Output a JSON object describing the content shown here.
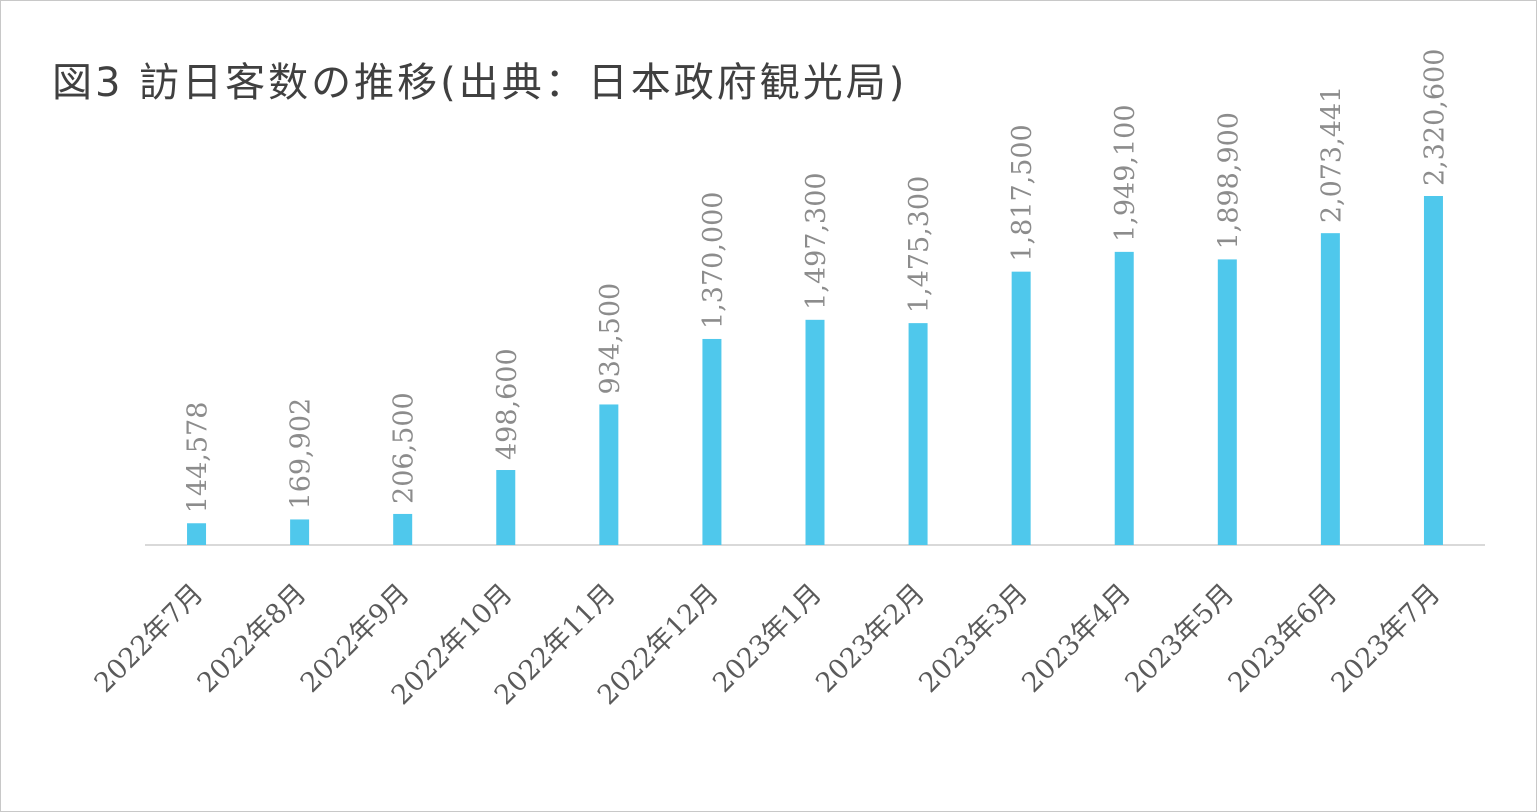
{
  "chart_data": {
    "type": "bar",
    "title": "図3 訪日客数の推移(出典：日本政府観光局)",
    "xlabel": "",
    "ylabel": "",
    "categories": [
      "2022年7月",
      "2022年8月",
      "2022年9月",
      "2022年10月",
      "2022年11月",
      "2022年12月",
      "2023年1月",
      "2023年2月",
      "2023年3月",
      "2023年4月",
      "2023年5月",
      "2023年6月",
      "2023年7月"
    ],
    "series": [
      {
        "values": [
          144578,
          169902,
          206500,
          498600,
          934500,
          1370000,
          1497300,
          1475300,
          1817500,
          1949100,
          1898900,
          2073441,
          2320600
        ]
      }
    ],
    "value_labels": [
      "144,578",
      "169,902",
      "206,500",
      "498,600",
      "934,500",
      "1,370,000",
      "1,497,300",
      "1,475,300",
      "1,817,500",
      "1,949,100",
      "1,898,900",
      "2,073,441",
      "2,320,600"
    ],
    "ylim": [
      0,
      2320600
    ],
    "grid": false,
    "legend": "none",
    "colors": {
      "bar": "#4FC8EC",
      "axis": "#d9d9d9",
      "data_label": "#8c8c8c",
      "tick_label": "#5a5a5a",
      "title": "#404040"
    }
  }
}
